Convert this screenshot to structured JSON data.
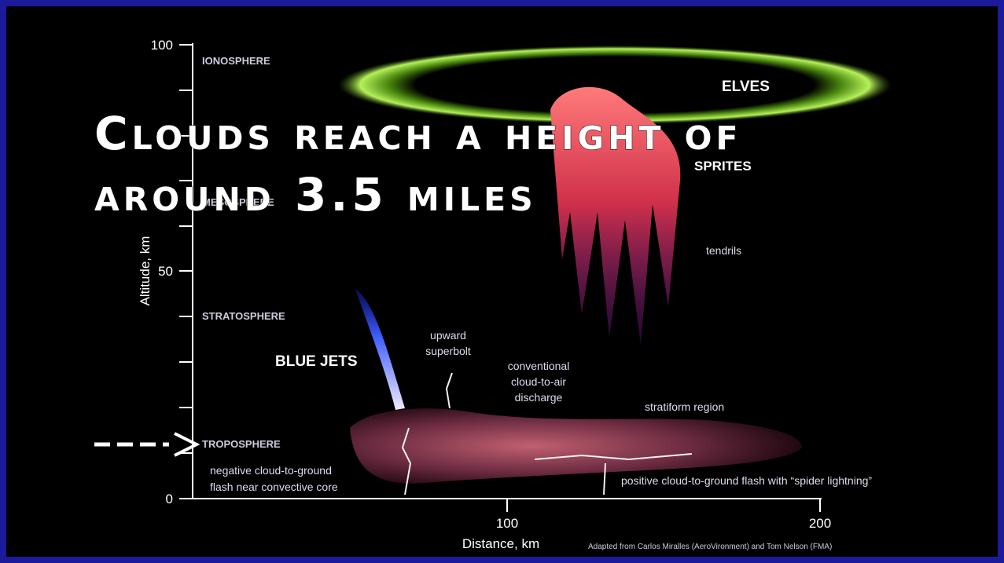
{
  "axes": {
    "y_label": "Altitude, km",
    "x_label": "Distance, km",
    "y_ticks": [
      "100",
      "50",
      "0"
    ],
    "x_ticks": [
      "100",
      "200"
    ]
  },
  "layers": [
    "IONOSPHERE",
    "MESOSPHERE",
    "STRATOSPHERE",
    "TROPOSPHERE"
  ],
  "phenomena": {
    "elves": "ELVES",
    "sprites": "SPRITES",
    "tendrils": "tendrils",
    "blue_jets": "BLUE JETS",
    "superbolt": [
      "upward",
      "superbolt"
    ],
    "cloud_to_air": [
      "conventional",
      "cloud-to-air",
      "discharge"
    ],
    "stratiform": "stratiform region",
    "negative_flash": [
      "negative cloud-to-ground",
      "flash near convective core"
    ],
    "positive_flash": "positive cloud-to-ground flash with “spider lightning”"
  },
  "credit": "Adapted from Carlos Miralles (AeroVironment) and Tom Nelson (FMA)",
  "caption": [
    "Clouds reach a height of",
    "around 3.5 miles"
  ]
}
